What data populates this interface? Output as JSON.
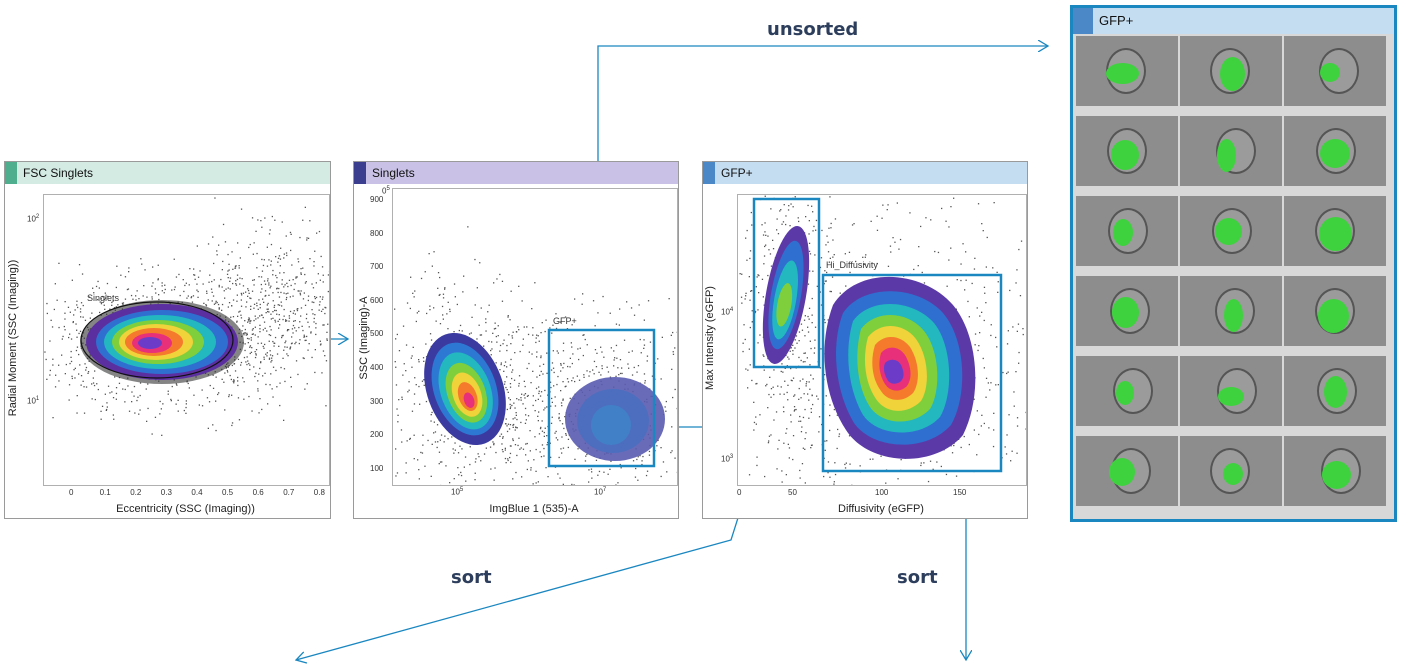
{
  "flow_labels": {
    "unsorted": "unsorted",
    "sort_left": "sort",
    "sort_right": "sort"
  },
  "colors": {
    "arrow": "#1a87c0",
    "gate": "#1a87c0",
    "gfp": "#3fd23f"
  },
  "panel1": {
    "title": "FSC Singlets",
    "title_color": "#d4ebe4",
    "swatch_color": "#4fae8e",
    "xlabel": "Eccentricity (SSC (Imaging))",
    "ylabel": "Radial Moment (SSC (Imaging))",
    "xticks": [
      "0",
      "0.1",
      "0.2",
      "0.3",
      "0.4",
      "0.5",
      "0.6",
      "0.7",
      "0.8"
    ],
    "yticks": [
      "10",
      "10"
    ],
    "yticks_exp": [
      "2",
      "1"
    ],
    "gate_label": "Singlets"
  },
  "panel2": {
    "title": "Singlets",
    "title_color": "#c9c2e6",
    "swatch_color": "#3b3d8f",
    "xlabel": "ImgBlue 1 (535)-A",
    "ylabel": "SSC (Imaging)-A",
    "yticks": [
      "900",
      "800",
      "700",
      "600",
      "500",
      "400",
      "300",
      "200",
      "100"
    ],
    "ytop": "0",
    "ytop_exp": "5",
    "xticks": [
      "10",
      "10"
    ],
    "xticks_exp": [
      "5",
      "7"
    ],
    "gate_label": "GFP+"
  },
  "panel3": {
    "title": "GFP+",
    "title_color": "#c5ddf1",
    "swatch_color": "#4a88c8",
    "xlabel": "Diffusivity (eGFP)",
    "ylabel": "Max Intensity (eGFP)",
    "xticks": [
      "0",
      "50",
      "100",
      "150"
    ],
    "yticks": [
      "10",
      "10"
    ],
    "yticks_exp": [
      "4",
      "3"
    ],
    "gate_label": "Hi_Diffusivity"
  },
  "gallery": {
    "title": "GFP+",
    "title_color": "#c5ddf1",
    "swatch_color": "#4a88c8",
    "rows": 6,
    "cols": 3
  }
}
